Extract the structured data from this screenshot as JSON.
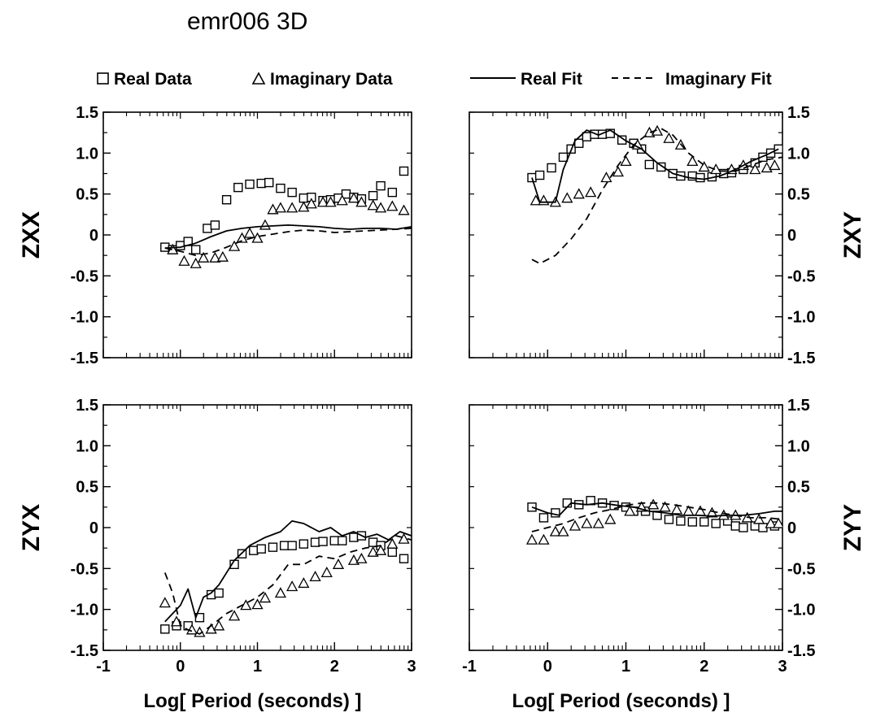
{
  "title": "emr006  3D",
  "legend": {
    "real_data": "Real Data",
    "imag_data": "Imaginary Data",
    "real_fit": "Real Fit",
    "imag_fit": "Imaginary Fit"
  },
  "colors": {
    "ink": "#000000",
    "background": "#ffffff"
  },
  "chart_data": [
    {
      "type": "scatter",
      "panel": "top-left",
      "title": "",
      "xlabel": "",
      "ylabel": "ZXX",
      "ylabel_side": "left",
      "xlim": [
        -1,
        3
      ],
      "ylim": [
        -1.5,
        1.5
      ],
      "x_scale": "log-period",
      "yticks": [
        "1.5",
        "1.0",
        "0.5",
        "0",
        "-0.5",
        "-1.0",
        "-1.5"
      ],
      "xticks": [],
      "series": [
        {
          "name": "Real Data",
          "marker": "square",
          "x": [
            -0.2,
            -0.1,
            0.0,
            0.1,
            0.2,
            0.35,
            0.45,
            0.6,
            0.75,
            0.9,
            1.05,
            1.15,
            1.3,
            1.45,
            1.6,
            1.7,
            1.85,
            1.95,
            2.05,
            2.15,
            2.25,
            2.35,
            2.5,
            2.6,
            2.75,
            2.9
          ],
          "y": [
            -0.15,
            -0.18,
            -0.13,
            -0.08,
            -0.18,
            0.08,
            0.12,
            0.43,
            0.58,
            0.62,
            0.63,
            0.64,
            0.57,
            0.52,
            0.45,
            0.46,
            0.42,
            0.43,
            0.45,
            0.5,
            0.46,
            0.44,
            0.48,
            0.6,
            0.52,
            0.78
          ]
        },
        {
          "name": "Imaginary Data",
          "marker": "triangle",
          "x": [
            -0.1,
            0.05,
            0.2,
            0.3,
            0.45,
            0.55,
            0.7,
            0.8,
            0.9,
            1.0,
            1.1,
            1.2,
            1.3,
            1.45,
            1.6,
            1.7,
            1.85,
            1.95,
            2.1,
            2.25,
            2.35,
            2.5,
            2.6,
            2.75,
            2.9
          ],
          "y": [
            -0.18,
            -0.32,
            -0.35,
            -0.28,
            -0.28,
            -0.27,
            -0.14,
            -0.04,
            0.02,
            -0.04,
            0.12,
            0.31,
            0.33,
            0.33,
            0.34,
            0.38,
            0.4,
            0.4,
            0.42,
            0.45,
            0.4,
            0.36,
            0.33,
            0.35,
            0.3
          ]
        },
        {
          "name": "Real Fit",
          "line": "solid",
          "x": [
            -0.2,
            0.0,
            0.2,
            0.4,
            0.6,
            0.8,
            1.0,
            1.2,
            1.4,
            1.6,
            1.8,
            2.0,
            2.2,
            2.4,
            2.6,
            2.8,
            3.0
          ],
          "y": [
            -0.16,
            -0.15,
            -0.1,
            -0.02,
            0.05,
            0.08,
            0.1,
            0.11,
            0.12,
            0.11,
            0.1,
            0.08,
            0.07,
            0.08,
            0.08,
            0.07,
            0.1
          ]
        },
        {
          "name": "Imaginary Fit",
          "line": "dashed",
          "x": [
            -0.2,
            0.0,
            0.2,
            0.4,
            0.6,
            0.8,
            1.0,
            1.2,
            1.4,
            1.6,
            1.8,
            2.0,
            2.2,
            2.4,
            2.6,
            2.8,
            3.0
          ],
          "y": [
            -0.16,
            -0.2,
            -0.25,
            -0.22,
            -0.15,
            -0.07,
            -0.02,
            0.01,
            0.04,
            0.06,
            0.05,
            0.03,
            0.04,
            0.05,
            0.06,
            0.07,
            0.08
          ]
        }
      ]
    },
    {
      "type": "scatter",
      "panel": "top-right",
      "title": "",
      "xlabel": "",
      "ylabel": "ZXY",
      "ylabel_side": "right",
      "xlim": [
        -1,
        3
      ],
      "ylim": [
        -1.5,
        1.5
      ],
      "x_scale": "log-period",
      "yticks": [
        "1.5",
        "1.0",
        "0.5",
        "0",
        "-0.5",
        "-1.0",
        "-1.5"
      ],
      "xticks": [],
      "series": [
        {
          "name": "Real Data",
          "marker": "square",
          "x": [
            -0.2,
            -0.1,
            0.05,
            0.2,
            0.3,
            0.4,
            0.5,
            0.6,
            0.7,
            0.8,
            0.95,
            1.1,
            1.2,
            1.3,
            1.45,
            1.6,
            1.7,
            1.85,
            1.95,
            2.1,
            2.25,
            2.35,
            2.5,
            2.65,
            2.75,
            2.85,
            2.95
          ],
          "y": [
            0.7,
            0.73,
            0.82,
            0.95,
            1.05,
            1.12,
            1.2,
            1.23,
            1.23,
            1.24,
            1.16,
            1.12,
            1.05,
            0.86,
            0.83,
            0.75,
            0.72,
            0.72,
            0.7,
            0.71,
            0.75,
            0.76,
            0.8,
            0.88,
            0.95,
            1.0,
            1.05
          ]
        },
        {
          "name": "Imaginary Data",
          "marker": "triangle",
          "x": [
            -0.15,
            -0.05,
            0.1,
            0.25,
            0.4,
            0.55,
            0.75,
            0.9,
            1.0,
            1.15,
            1.3,
            1.4,
            1.55,
            1.7,
            1.85,
            2.0,
            2.15,
            2.35,
            2.5,
            2.65,
            2.8,
            2.9
          ],
          "y": [
            0.42,
            0.42,
            0.4,
            0.45,
            0.5,
            0.52,
            0.7,
            0.77,
            0.9,
            1.1,
            1.25,
            1.27,
            1.18,
            1.1,
            0.9,
            0.83,
            0.8,
            0.8,
            0.85,
            0.8,
            0.82,
            0.85
          ]
        },
        {
          "name": "Real Fit",
          "line": "solid",
          "x": [
            -0.2,
            -0.1,
            0.1,
            0.2,
            0.35,
            0.5,
            0.65,
            0.8,
            1.0,
            1.2,
            1.4,
            1.6,
            1.8,
            2.0,
            2.2,
            2.4,
            2.6,
            2.8,
            2.95
          ],
          "y": [
            0.7,
            0.4,
            0.4,
            0.8,
            1.15,
            1.28,
            1.22,
            1.28,
            1.15,
            1.05,
            0.88,
            0.75,
            0.7,
            0.68,
            0.72,
            0.8,
            0.9,
            0.98,
            1.05
          ]
        },
        {
          "name": "Imaginary Fit",
          "line": "dashed",
          "x": [
            -0.2,
            -0.1,
            0.1,
            0.3,
            0.5,
            0.7,
            0.9,
            1.1,
            1.3,
            1.45,
            1.6,
            1.8,
            2.0,
            2.2,
            2.4,
            2.6,
            2.8,
            3.0
          ],
          "y": [
            -0.3,
            -0.35,
            -0.25,
            -0.05,
            0.2,
            0.55,
            0.85,
            1.1,
            1.25,
            1.3,
            1.22,
            1.0,
            0.85,
            0.78,
            0.78,
            0.85,
            0.92,
            0.95
          ]
        }
      ]
    },
    {
      "type": "scatter",
      "panel": "bottom-left",
      "title": "",
      "xlabel": "Log[ Period (seconds) ]",
      "ylabel": "ZYX",
      "ylabel_side": "left",
      "xlim": [
        -1,
        3
      ],
      "ylim": [
        -1.5,
        1.5
      ],
      "x_scale": "log-period",
      "yticks": [
        "1.5",
        "1.0",
        "0.5",
        "0",
        "-0.5",
        "-1.0",
        "-1.5"
      ],
      "xticks": [
        "-1",
        "0",
        "1",
        "2",
        "3"
      ],
      "series": [
        {
          "name": "Real Data",
          "marker": "square",
          "x": [
            -0.2,
            -0.05,
            0.1,
            0.25,
            0.4,
            0.5,
            0.7,
            0.8,
            0.95,
            1.05,
            1.2,
            1.35,
            1.45,
            1.6,
            1.75,
            1.85,
            2.0,
            2.1,
            2.25,
            2.35,
            2.5,
            2.6,
            2.75,
            2.9
          ],
          "y": [
            -1.24,
            -1.2,
            -1.2,
            -1.1,
            -0.82,
            -0.8,
            -0.45,
            -0.32,
            -0.28,
            -0.26,
            -0.24,
            -0.22,
            -0.22,
            -0.2,
            -0.18,
            -0.17,
            -0.16,
            -0.16,
            -0.12,
            -0.1,
            -0.18,
            -0.22,
            -0.3,
            -0.38
          ]
        },
        {
          "name": "Imaginary Data",
          "marker": "triangle",
          "x": [
            -0.2,
            -0.05,
            0.15,
            0.25,
            0.4,
            0.5,
            0.7,
            0.85,
            1.0,
            1.1,
            1.3,
            1.45,
            1.6,
            1.75,
            1.9,
            2.05,
            2.25,
            2.35,
            2.5,
            2.6,
            2.75,
            2.9
          ],
          "y": [
            -0.92,
            -1.15,
            -1.25,
            -1.28,
            -1.24,
            -1.2,
            -1.08,
            -0.95,
            -0.94,
            -0.86,
            -0.8,
            -0.72,
            -0.68,
            -0.6,
            -0.55,
            -0.45,
            -0.4,
            -0.38,
            -0.3,
            -0.28,
            -0.2,
            -0.14
          ]
        },
        {
          "name": "Real Fit",
          "line": "solid",
          "x": [
            -0.2,
            0.0,
            0.1,
            0.2,
            0.3,
            0.4,
            0.5,
            0.7,
            0.9,
            1.1,
            1.3,
            1.45,
            1.6,
            1.8,
            1.95,
            2.1,
            2.25,
            2.4,
            2.55,
            2.7,
            2.85,
            3.0
          ],
          "y": [
            -1.15,
            -0.95,
            -0.75,
            -1.1,
            -0.85,
            -0.8,
            -0.7,
            -0.4,
            -0.22,
            -0.12,
            -0.05,
            0.08,
            0.05,
            -0.05,
            0.0,
            -0.1,
            -0.05,
            -0.12,
            -0.08,
            -0.15,
            -0.05,
            -0.1
          ]
        },
        {
          "name": "Imaginary Fit",
          "line": "dashed",
          "x": [
            -0.2,
            -0.1,
            0.0,
            0.1,
            0.25,
            0.4,
            0.6,
            0.8,
            1.0,
            1.2,
            1.4,
            1.6,
            1.8,
            2.0,
            2.2,
            2.4,
            2.6,
            2.8,
            3.0
          ],
          "y": [
            -0.55,
            -0.8,
            -1.2,
            -1.25,
            -1.3,
            -1.2,
            -1.05,
            -0.95,
            -0.85,
            -0.7,
            -0.45,
            -0.45,
            -0.35,
            -0.38,
            -0.3,
            -0.25,
            -0.22,
            -0.1,
            -0.15
          ]
        }
      ]
    },
    {
      "type": "scatter",
      "panel": "bottom-right",
      "title": "",
      "xlabel": "Log[ Period (seconds) ]",
      "ylabel": "ZYY",
      "ylabel_side": "right",
      "xlim": [
        -1,
        3
      ],
      "ylim": [
        -1.5,
        1.5
      ],
      "x_scale": "log-period",
      "yticks": [
        "1.5",
        "1.0",
        "0.5",
        "0",
        "-0.5",
        "-1.0",
        "-1.5"
      ],
      "xticks": [
        "-1",
        "0",
        "1",
        "2",
        "3"
      ],
      "series": [
        {
          "name": "Real Data",
          "marker": "square",
          "x": [
            -0.2,
            -0.05,
            0.1,
            0.25,
            0.4,
            0.55,
            0.7,
            0.85,
            1.0,
            1.1,
            1.25,
            1.4,
            1.55,
            1.7,
            1.85,
            2.0,
            2.15,
            2.3,
            2.4,
            2.5,
            2.65,
            2.75,
            2.9
          ],
          "y": [
            0.25,
            0.12,
            0.18,
            0.3,
            0.28,
            0.33,
            0.3,
            0.27,
            0.25,
            0.2,
            0.2,
            0.15,
            0.1,
            0.08,
            0.07,
            0.07,
            0.05,
            0.08,
            0.02,
            0.0,
            0.02,
            0.0,
            0.02
          ]
        },
        {
          "name": "Imaginary Data",
          "marker": "triangle",
          "x": [
            -0.2,
            -0.05,
            0.1,
            0.2,
            0.35,
            0.5,
            0.65,
            0.8,
            1.05,
            1.2,
            1.35,
            1.5,
            1.65,
            1.8,
            1.95,
            2.1,
            2.25,
            2.4,
            2.55,
            2.7,
            2.85,
            2.95
          ],
          "y": [
            -0.15,
            -0.15,
            -0.05,
            -0.05,
            0.02,
            0.05,
            0.05,
            0.1,
            0.2,
            0.25,
            0.28,
            0.25,
            0.22,
            0.2,
            0.2,
            0.18,
            0.15,
            0.15,
            0.12,
            0.1,
            0.05,
            0.05
          ]
        },
        {
          "name": "Real Fit",
          "line": "solid",
          "x": [
            -0.2,
            0.0,
            0.15,
            0.3,
            0.5,
            0.7,
            0.9,
            1.1,
            1.3,
            1.5,
            1.7,
            1.9,
            2.1,
            2.3,
            2.5,
            2.7,
            2.9,
            3.0
          ],
          "y": [
            0.25,
            0.18,
            0.15,
            0.3,
            0.28,
            0.3,
            0.27,
            0.25,
            0.2,
            0.18,
            0.15,
            0.15,
            0.14,
            0.15,
            0.15,
            0.17,
            0.2,
            0.2
          ]
        },
        {
          "name": "Imaginary Fit",
          "line": "dashed",
          "x": [
            -0.2,
            0.0,
            0.2,
            0.4,
            0.6,
            0.8,
            1.0,
            1.2,
            1.4,
            1.6,
            1.8,
            2.0,
            2.2,
            2.4,
            2.6,
            2.8,
            3.0
          ],
          "y": [
            -0.05,
            0.0,
            0.05,
            0.12,
            0.18,
            0.22,
            0.27,
            0.3,
            0.3,
            0.28,
            0.25,
            0.22,
            0.18,
            0.15,
            0.12,
            0.12,
            0.1
          ]
        }
      ]
    }
  ]
}
